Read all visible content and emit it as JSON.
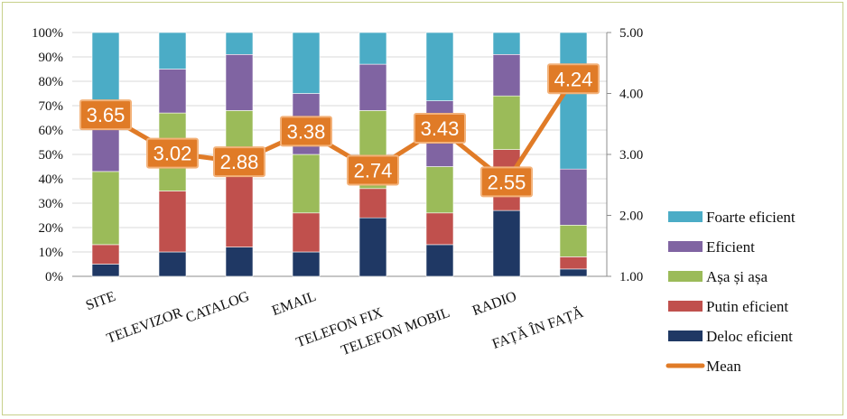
{
  "chart_data": {
    "type": "bar",
    "stacked": true,
    "percent_stacked": true,
    "categories": [
      "SITE",
      "TELEVIZOR",
      "CATALOG",
      "EMAIL",
      "TELEFON FIX",
      "TELEFON MOBIL",
      "RADIO",
      "FAȚĂ ÎN FAȚĂ"
    ],
    "series": [
      {
        "name": "Deloc eficient",
        "color": "#1f3864",
        "values": [
          5,
          10,
          12,
          10,
          24,
          13,
          27,
          3
        ]
      },
      {
        "name": "Putin eficient",
        "color": "#c0504d",
        "values": [
          8,
          25,
          32,
          16,
          12,
          13,
          25,
          5
        ]
      },
      {
        "name": "Așa și așa",
        "color": "#9bbb59",
        "values": [
          30,
          32,
          24,
          24,
          32,
          19,
          22,
          13
        ]
      },
      {
        "name": "Eficient",
        "color": "#8064a2",
        "values": [
          28,
          18,
          23,
          25,
          19,
          27,
          17,
          23
        ]
      },
      {
        "name": "Foarte eficient",
        "color": "#4bacc6",
        "values": [
          29,
          15,
          9,
          25,
          13,
          28,
          9,
          56
        ]
      }
    ],
    "line_series": {
      "name": "Mean",
      "color": "#e07b27",
      "values": [
        3.65,
        3.02,
        2.88,
        3.38,
        2.74,
        3.43,
        2.55,
        4.24
      ],
      "labels": [
        "3.65",
        "3.02",
        "2.88",
        "3.38",
        "2.74",
        "3.43",
        "2.55",
        "4.24"
      ]
    },
    "y_left": {
      "ylim": [
        0,
        100
      ],
      "ticks": [
        "0%",
        "10%",
        "20%",
        "30%",
        "40%",
        "50%",
        "60%",
        "70%",
        "80%",
        "90%",
        "100%"
      ]
    },
    "y_right": {
      "ylim": [
        1,
        5
      ],
      "ticks": [
        "1.00",
        "2.00",
        "3.00",
        "4.00",
        "5.00"
      ]
    },
    "legend": {
      "placement": "right",
      "entries": [
        "Foarte eficient",
        "Eficient",
        "Așa și așa",
        "Putin eficient",
        "Deloc eficient",
        "Mean"
      ]
    },
    "title": "",
    "xlabel": "",
    "ylabel": ""
  }
}
